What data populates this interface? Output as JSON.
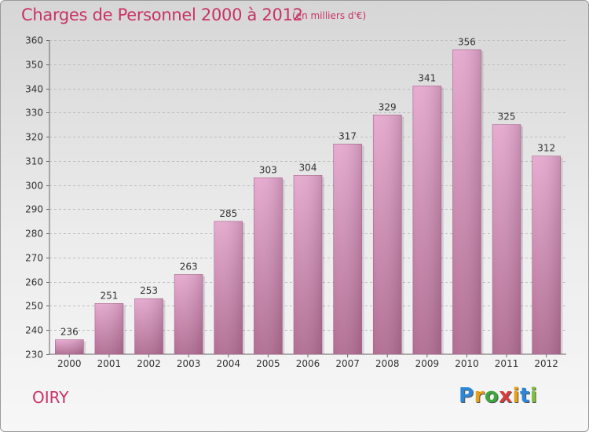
{
  "header": {
    "title": "Charges de Personnel 2000 à 2012",
    "subtitle": "(en milliers d'€)"
  },
  "footer": {
    "commune": "OIRY",
    "logo_letters": [
      "P",
      "r",
      "o",
      "x",
      "i",
      "t",
      "i"
    ],
    "logo_colors": [
      "#2b88d8",
      "#e8a21a",
      "#3aa83a",
      "#d83b3b",
      "#e8a21a",
      "#2b88d8",
      "#7fbf3a"
    ]
  },
  "chart_data": {
    "type": "bar",
    "categories": [
      "2000",
      "2001",
      "2002",
      "2003",
      "2004",
      "2005",
      "2006",
      "2007",
      "2008",
      "2009",
      "2010",
      "2011",
      "2012"
    ],
    "values": [
      236,
      251,
      253,
      263,
      285,
      303,
      304,
      317,
      329,
      341,
      356,
      325,
      312
    ],
    "ylim": [
      230,
      360
    ],
    "yticks": [
      230,
      240,
      250,
      260,
      270,
      280,
      290,
      300,
      310,
      320,
      330,
      340,
      350,
      360
    ],
    "grid": true,
    "bar_color": "#d996bd",
    "bar_color_dark": "#b06d92"
  }
}
